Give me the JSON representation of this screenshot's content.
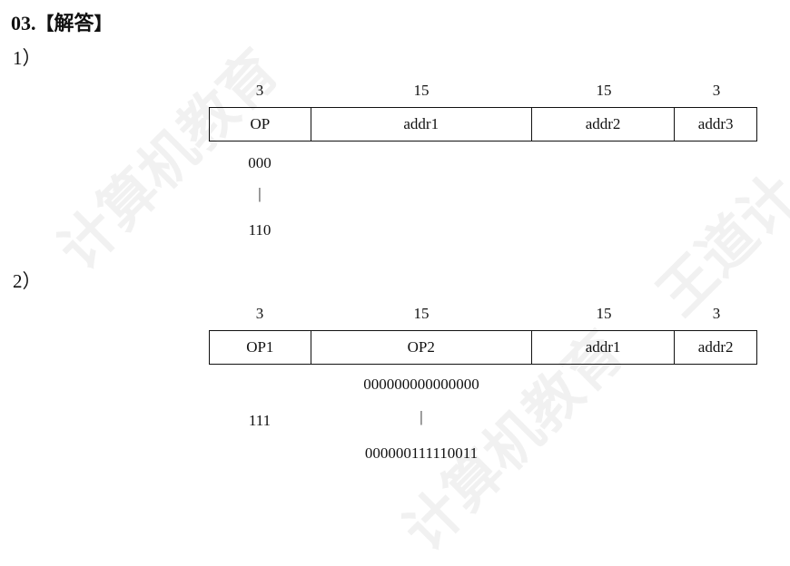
{
  "heading": {
    "number": "03.",
    "bracket_open": "【",
    "title": "解答",
    "bracket_close": "】"
  },
  "part1": {
    "label": "1）",
    "bit_widths": [
      "3",
      "15",
      "15",
      "3"
    ],
    "fields": [
      "OP",
      "addr1",
      "addr2",
      "addr3"
    ],
    "op_range": {
      "start": "000",
      "separator": "|",
      "end": "110"
    }
  },
  "part2": {
    "label": "2）",
    "bit_widths": [
      "3",
      "15",
      "15",
      "3"
    ],
    "fields": [
      "OP1",
      "OP2",
      "addr1",
      "addr2"
    ],
    "op1_value": "111",
    "op2_range": {
      "start": "000000000000000",
      "separator": "|",
      "end": "000000111110011"
    }
  },
  "watermark": {
    "text": "计算机教育",
    "text2": "王道计"
  }
}
